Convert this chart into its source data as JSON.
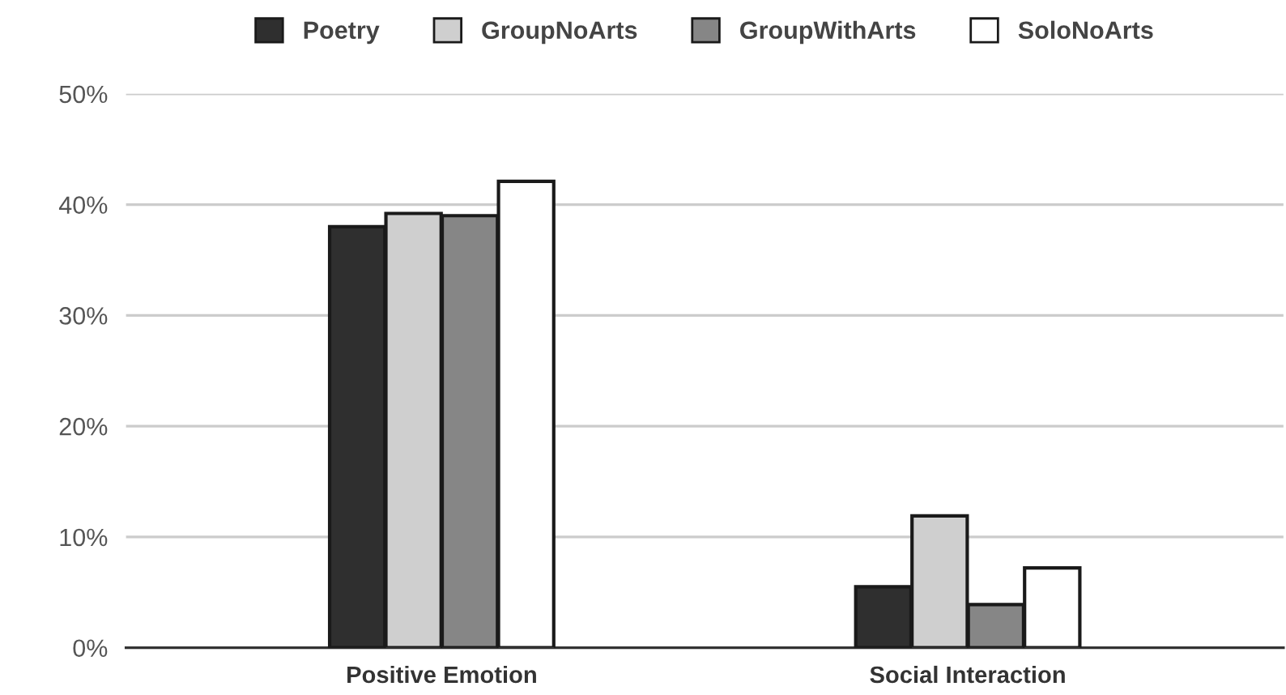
{
  "chart_data": {
    "type": "bar",
    "categories": [
      "Positive Emotion",
      "Social Interaction"
    ],
    "series": [
      {
        "name": "Poetry",
        "color": "#2f2f2f",
        "values": [
          38,
          5.5
        ]
      },
      {
        "name": "GroupNoArts",
        "color": "#cfcfcf",
        "values": [
          39.2,
          11.9
        ]
      },
      {
        "name": "GroupWithArts",
        "color": "#868686",
        "values": [
          39,
          3.9
        ]
      },
      {
        "name": "SoloNoArts",
        "color": "#ffffff",
        "values": [
          42.1,
          7.2
        ]
      }
    ],
    "ylim": [
      0,
      50
    ],
    "yticks": [
      {
        "value": 0,
        "label": "0%"
      },
      {
        "value": 10,
        "label": "10%"
      },
      {
        "value": 20,
        "label": "20%"
      },
      {
        "value": 30,
        "label": "30%"
      },
      {
        "value": 40,
        "label": "40%"
      },
      {
        "value": 50,
        "label": "50%"
      }
    ],
    "grid": "y",
    "legend": "top"
  }
}
